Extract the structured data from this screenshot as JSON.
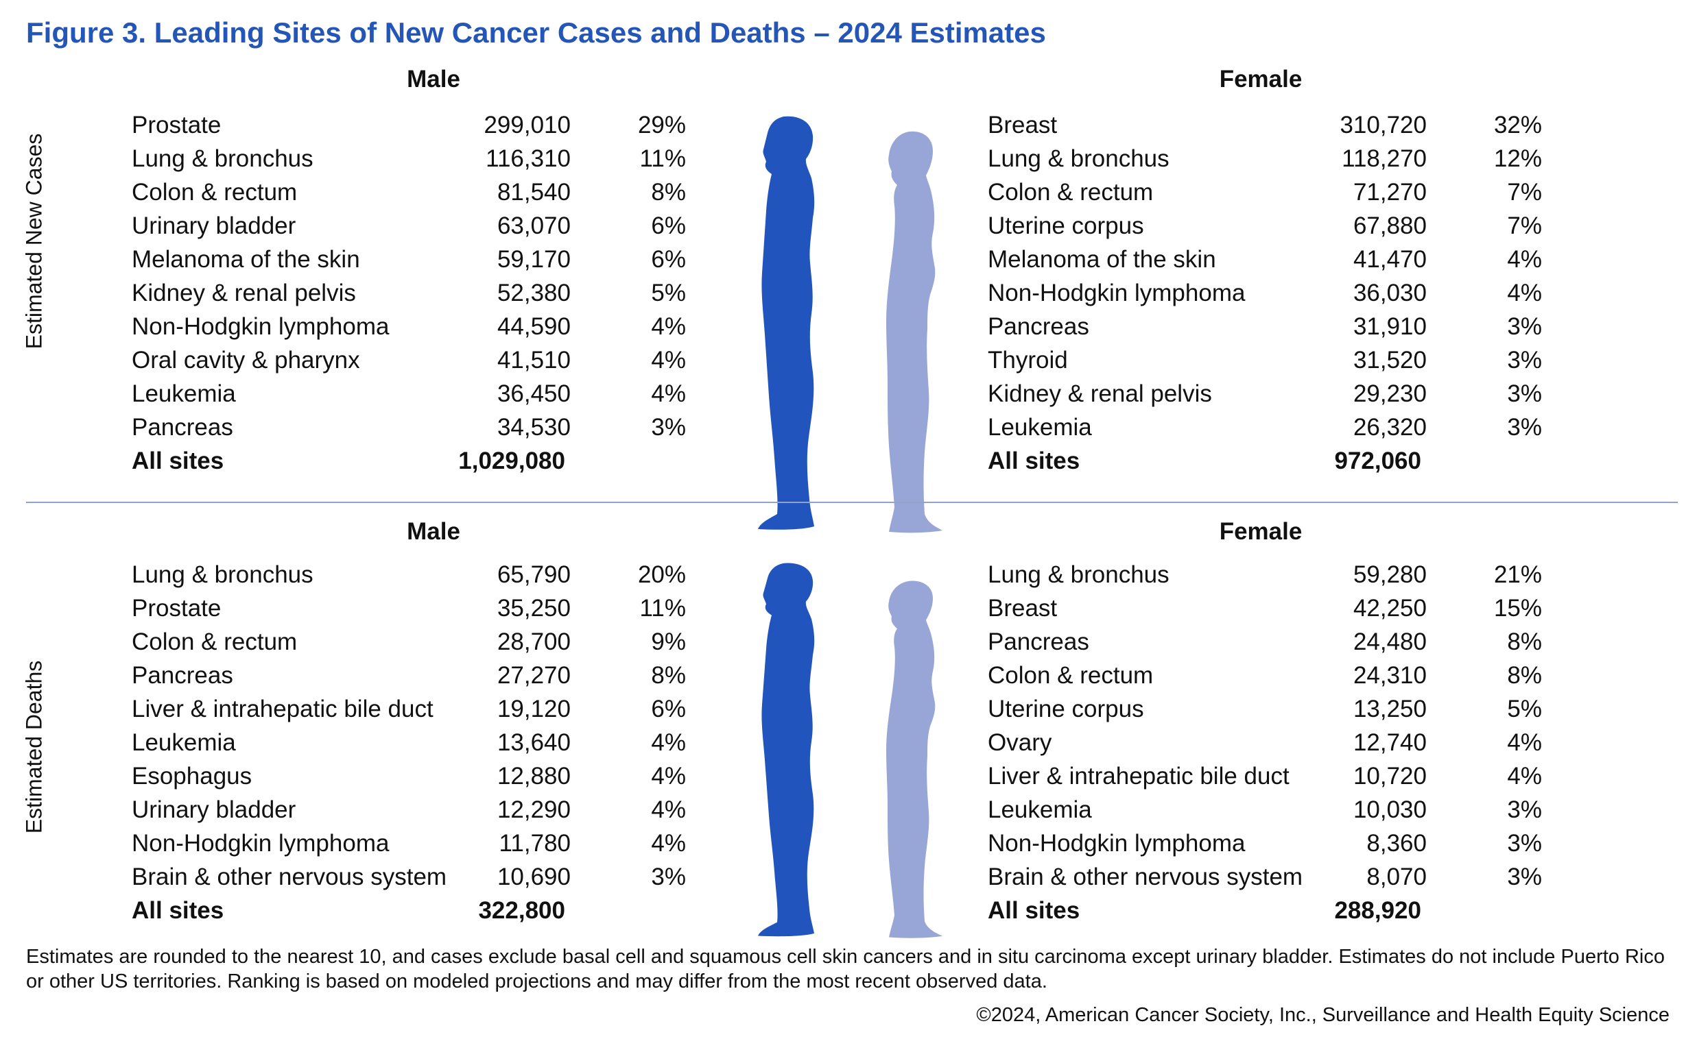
{
  "title": "Figure 3. Leading Sites of New Cancer Cases and Deaths – 2024 Estimates",
  "colors": {
    "title": "#2456b8",
    "male_figure": "#2155bd",
    "female_figure": "#97a6d6",
    "divider": "#8fa4c8"
  },
  "cases": {
    "side_label": "Estimated New Cases",
    "male": {
      "heading": "Male",
      "rows": [
        {
          "site": "Prostate",
          "count": "299,010",
          "pct": "29%"
        },
        {
          "site": "Lung & bronchus",
          "count": "116,310",
          "pct": "11%"
        },
        {
          "site": "Colon & rectum",
          "count": "81,540",
          "pct": "8%"
        },
        {
          "site": "Urinary bladder",
          "count": "63,070",
          "pct": "6%"
        },
        {
          "site": "Melanoma of the skin",
          "count": "59,170",
          "pct": "6%"
        },
        {
          "site": "Kidney & renal pelvis",
          "count": "52,380",
          "pct": "5%"
        },
        {
          "site": "Non-Hodgkin lymphoma",
          "count": "44,590",
          "pct": "4%"
        },
        {
          "site": "Oral cavity & pharynx",
          "count": "41,510",
          "pct": "4%"
        },
        {
          "site": "Leukemia",
          "count": "36,450",
          "pct": "4%"
        },
        {
          "site": "Pancreas",
          "count": "34,530",
          "pct": "3%"
        }
      ],
      "total": {
        "site": "All sites",
        "count": "1,029,080"
      }
    },
    "female": {
      "heading": "Female",
      "rows": [
        {
          "site": "Breast",
          "count": "310,720",
          "pct": "32%"
        },
        {
          "site": "Lung & bronchus",
          "count": "118,270",
          "pct": "12%"
        },
        {
          "site": "Colon & rectum",
          "count": "71,270",
          "pct": "7%"
        },
        {
          "site": "Uterine corpus",
          "count": "67,880",
          "pct": "7%"
        },
        {
          "site": "Melanoma of the skin",
          "count": "41,470",
          "pct": "4%"
        },
        {
          "site": "Non-Hodgkin lymphoma",
          "count": "36,030",
          "pct": "4%"
        },
        {
          "site": "Pancreas",
          "count": "31,910",
          "pct": "3%"
        },
        {
          "site": "Thyroid",
          "count": "31,520",
          "pct": "3%"
        },
        {
          "site": "Kidney & renal pelvis",
          "count": "29,230",
          "pct": "3%"
        },
        {
          "site": "Leukemia",
          "count": "26,320",
          "pct": "3%"
        }
      ],
      "total": {
        "site": "All sites",
        "count": "972,060"
      }
    }
  },
  "deaths": {
    "side_label": "Estimated Deaths",
    "male": {
      "heading": "Male",
      "rows": [
        {
          "site": "Lung & bronchus",
          "count": "65,790",
          "pct": "20%"
        },
        {
          "site": "Prostate",
          "count": "35,250",
          "pct": "11%"
        },
        {
          "site": "Colon & rectum",
          "count": "28,700",
          "pct": "9%"
        },
        {
          "site": "Pancreas",
          "count": "27,270",
          "pct": "8%"
        },
        {
          "site": "Liver & intrahepatic bile duct",
          "count": "19,120",
          "pct": "6%"
        },
        {
          "site": "Leukemia",
          "count": "13,640",
          "pct": "4%"
        },
        {
          "site": "Esophagus",
          "count": "12,880",
          "pct": "4%"
        },
        {
          "site": "Urinary bladder",
          "count": "12,290",
          "pct": "4%"
        },
        {
          "site": "Non-Hodgkin lymphoma",
          "count": "11,780",
          "pct": "4%"
        },
        {
          "site": "Brain & other nervous system",
          "count": "10,690",
          "pct": "3%"
        }
      ],
      "total": {
        "site": "All sites",
        "count": "322,800"
      }
    },
    "female": {
      "heading": "Female",
      "rows": [
        {
          "site": "Lung & bronchus",
          "count": "59,280",
          "pct": "21%"
        },
        {
          "site": "Breast",
          "count": "42,250",
          "pct": "15%"
        },
        {
          "site": "Pancreas",
          "count": "24,480",
          "pct": "8%"
        },
        {
          "site": "Colon & rectum",
          "count": "24,310",
          "pct": "8%"
        },
        {
          "site": "Uterine corpus",
          "count": "13,250",
          "pct": "5%"
        },
        {
          "site": "Ovary",
          "count": "12,740",
          "pct": "4%"
        },
        {
          "site": "Liver & intrahepatic bile duct",
          "count": "10,720",
          "pct": "4%"
        },
        {
          "site": "Leukemia",
          "count": "10,030",
          "pct": "3%"
        },
        {
          "site": "Non-Hodgkin lymphoma",
          "count": "8,360",
          "pct": "3%"
        },
        {
          "site": "Brain & other nervous system",
          "count": "8,070",
          "pct": "3%"
        }
      ],
      "total": {
        "site": "All sites",
        "count": "288,920"
      }
    }
  },
  "footnote": "Estimates are rounded to the nearest 10, and cases exclude basal cell and squamous cell skin cancers and in situ carcinoma except urinary bladder. Estimates do not include Puerto Rico or other US territories. Ranking is based on modeled projections and may differ from the most recent observed data.",
  "credit": "©2024, American Cancer Society, Inc., Surveillance and Health Equity Science"
}
